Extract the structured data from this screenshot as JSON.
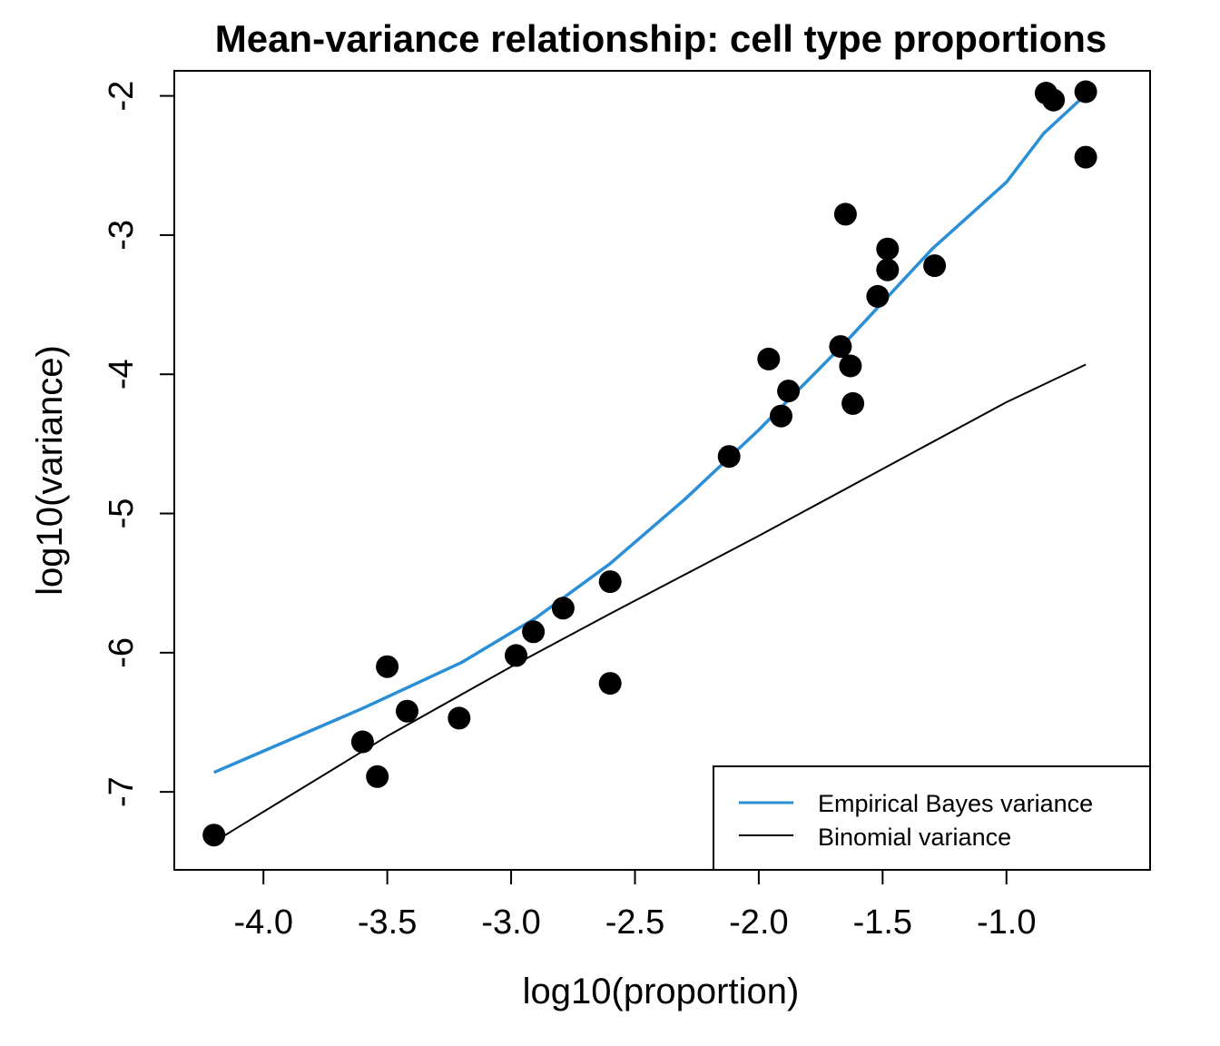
{
  "chart_data": {
    "type": "scatter",
    "title": "Mean-variance relationship: cell type proportions",
    "xlabel": "log10(proportion)",
    "ylabel": "log10(variance)",
    "xlim": [
      -4.36,
      -0.42
    ],
    "ylim": [
      -7.56,
      -1.82
    ],
    "xticks": [
      -4.0,
      -3.5,
      -3.0,
      -2.5,
      -2.0,
      -1.5,
      -1.0
    ],
    "xtick_labels": [
      "-4.0",
      "-3.5",
      "-3.0",
      "-2.5",
      "-2.0",
      "-1.5",
      "-1.0"
    ],
    "yticks": [
      -7,
      -6,
      -5,
      -4,
      -3,
      -2
    ],
    "ytick_labels": [
      "-7",
      "-6",
      "-5",
      "-4",
      "-3",
      "-2"
    ],
    "grid": false,
    "legend_position": "bottom-right",
    "series": [
      {
        "kind": "points",
        "color": "#000000",
        "points": [
          [
            -4.2,
            -7.31
          ],
          [
            -3.6,
            -6.64
          ],
          [
            -3.54,
            -6.89
          ],
          [
            -3.5,
            -6.1
          ],
          [
            -3.42,
            -6.42
          ],
          [
            -3.21,
            -6.47
          ],
          [
            -2.98,
            -6.02
          ],
          [
            -2.91,
            -5.85
          ],
          [
            -2.79,
            -5.68
          ],
          [
            -2.6,
            -5.49
          ],
          [
            -2.6,
            -6.22
          ],
          [
            -2.12,
            -4.59
          ],
          [
            -1.96,
            -3.89
          ],
          [
            -1.91,
            -4.3
          ],
          [
            -1.88,
            -4.12
          ],
          [
            -1.67,
            -3.8
          ],
          [
            -1.65,
            -2.85
          ],
          [
            -1.63,
            -3.94
          ],
          [
            -1.62,
            -4.21
          ],
          [
            -1.52,
            -3.44
          ],
          [
            -1.48,
            -3.1
          ],
          [
            -1.48,
            -3.25
          ],
          [
            -1.29,
            -3.22
          ],
          [
            -0.84,
            -1.98
          ],
          [
            -0.81,
            -2.03
          ],
          [
            -0.68,
            -1.97
          ],
          [
            -0.68,
            -2.44
          ]
        ]
      },
      {
        "name": "Empirical Bayes variance",
        "kind": "line",
        "color": "#2b8fd8",
        "points": [
          [
            -4.2,
            -6.86
          ],
          [
            -3.6,
            -6.4
          ],
          [
            -3.2,
            -6.07
          ],
          [
            -2.9,
            -5.75
          ],
          [
            -2.6,
            -5.36
          ],
          [
            -2.3,
            -4.9
          ],
          [
            -2.0,
            -4.4
          ],
          [
            -1.65,
            -3.77
          ],
          [
            -1.3,
            -3.1
          ],
          [
            -1.0,
            -2.62
          ],
          [
            -0.85,
            -2.27
          ],
          [
            -0.68,
            -1.99
          ]
        ]
      },
      {
        "name": "Binomial variance",
        "kind": "line",
        "color": "#000000",
        "points": [
          [
            -4.2,
            -7.36
          ],
          [
            -3.5,
            -6.6
          ],
          [
            -3.0,
            -6.1
          ],
          [
            -2.6,
            -5.72
          ],
          [
            -2.0,
            -5.16
          ],
          [
            -1.5,
            -4.68
          ],
          [
            -1.0,
            -4.2
          ],
          [
            -0.68,
            -3.93
          ]
        ]
      }
    ]
  },
  "legend": {
    "items": [
      {
        "label": "Empirical Bayes variance",
        "color": "#2b8fd8"
      },
      {
        "label": "Binomial variance",
        "color": "#000000"
      }
    ]
  }
}
